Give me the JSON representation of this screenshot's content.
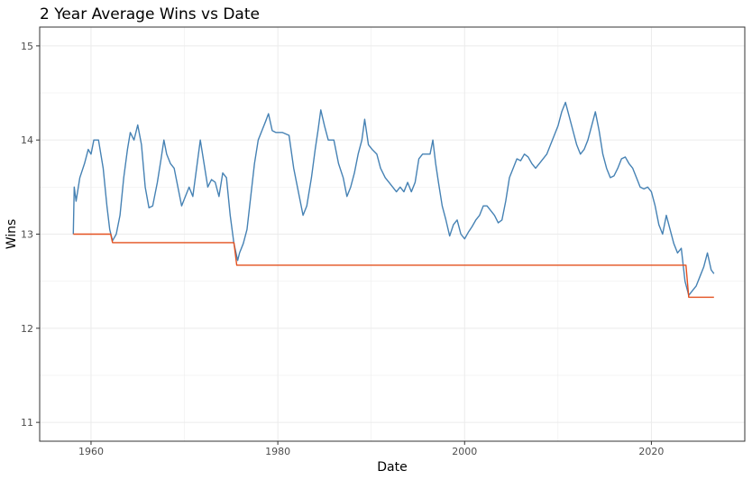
{
  "chart_data": {
    "type": "line",
    "title": "2 Year Average Wins vs Date",
    "xlabel": "Date",
    "ylabel": "Wins",
    "xlim": [
      1954.5,
      2030.0
    ],
    "ylim": [
      10.8,
      15.2
    ],
    "x_ticks": [
      1960,
      1980,
      2000,
      2020
    ],
    "x_tick_labels": [
      "1960",
      "1980",
      "2000",
      "2020"
    ],
    "y_ticks": [
      11,
      12,
      13,
      14,
      15
    ],
    "y_tick_labels": [
      "11",
      "12",
      "13",
      "14",
      "15"
    ],
    "grid": true,
    "legend": "none",
    "colors": {
      "average_wins": "#4682b4",
      "running_min": "#e3501f",
      "grid": "#ebebeb",
      "panel_border": "#333333"
    },
    "series": [
      {
        "key": "average_wins",
        "points": [
          [
            1958.1,
            13.0
          ],
          [
            1958.2,
            13.5
          ],
          [
            1958.4,
            13.35
          ],
          [
            1958.8,
            13.6
          ],
          [
            1959.3,
            13.75
          ],
          [
            1959.7,
            13.9
          ],
          [
            1960.0,
            13.85
          ],
          [
            1960.3,
            14.0
          ],
          [
            1960.8,
            14.0
          ],
          [
            1961.3,
            13.7
          ],
          [
            1961.7,
            13.3
          ],
          [
            1962.0,
            13.05
          ],
          [
            1962.3,
            12.93
          ],
          [
            1962.7,
            13.0
          ],
          [
            1963.1,
            13.2
          ],
          [
            1963.5,
            13.6
          ],
          [
            1963.9,
            13.9
          ],
          [
            1964.2,
            14.08
          ],
          [
            1964.6,
            14.0
          ],
          [
            1965.0,
            14.16
          ],
          [
            1965.4,
            13.95
          ],
          [
            1965.8,
            13.5
          ],
          [
            1966.2,
            13.28
          ],
          [
            1966.6,
            13.3
          ],
          [
            1967.1,
            13.55
          ],
          [
            1967.5,
            13.8
          ],
          [
            1967.8,
            14.0
          ],
          [
            1968.1,
            13.85
          ],
          [
            1968.5,
            13.75
          ],
          [
            1968.9,
            13.7
          ],
          [
            1969.3,
            13.5
          ],
          [
            1969.7,
            13.3
          ],
          [
            1970.1,
            13.4
          ],
          [
            1970.5,
            13.5
          ],
          [
            1970.9,
            13.4
          ],
          [
            1971.3,
            13.7
          ],
          [
            1971.7,
            14.0
          ],
          [
            1972.1,
            13.75
          ],
          [
            1972.5,
            13.5
          ],
          [
            1972.9,
            13.58
          ],
          [
            1973.3,
            13.55
          ],
          [
            1973.7,
            13.4
          ],
          [
            1974.1,
            13.65
          ],
          [
            1974.5,
            13.6
          ],
          [
            1974.9,
            13.2
          ],
          [
            1975.3,
            12.9
          ],
          [
            1975.7,
            12.72
          ],
          [
            1975.9,
            12.8
          ],
          [
            1976.3,
            12.9
          ],
          [
            1976.7,
            13.05
          ],
          [
            1977.1,
            13.4
          ],
          [
            1977.5,
            13.75
          ],
          [
            1977.9,
            14.0
          ],
          [
            1978.3,
            14.1
          ],
          [
            1978.7,
            14.2
          ],
          [
            1979.0,
            14.28
          ],
          [
            1979.4,
            14.1
          ],
          [
            1979.8,
            14.08
          ],
          [
            1980.5,
            14.08
          ],
          [
            1981.2,
            14.05
          ],
          [
            1981.7,
            13.7
          ],
          [
            1982.0,
            13.55
          ],
          [
            1982.4,
            13.35
          ],
          [
            1982.7,
            13.2
          ],
          [
            1983.1,
            13.3
          ],
          [
            1983.6,
            13.6
          ],
          [
            1984.0,
            13.9
          ],
          [
            1984.3,
            14.1
          ],
          [
            1984.6,
            14.32
          ],
          [
            1985.0,
            14.15
          ],
          [
            1985.4,
            14.0
          ],
          [
            1986.0,
            14.0
          ],
          [
            1986.5,
            13.75
          ],
          [
            1987.0,
            13.6
          ],
          [
            1987.4,
            13.4
          ],
          [
            1987.8,
            13.5
          ],
          [
            1988.2,
            13.65
          ],
          [
            1988.6,
            13.85
          ],
          [
            1989.0,
            14.0
          ],
          [
            1989.3,
            14.22
          ],
          [
            1989.7,
            13.95
          ],
          [
            1990.1,
            13.9
          ],
          [
            1990.6,
            13.85
          ],
          [
            1991.0,
            13.7
          ],
          [
            1991.5,
            13.6
          ],
          [
            1991.9,
            13.55
          ],
          [
            1992.3,
            13.5
          ],
          [
            1992.7,
            13.45
          ],
          [
            1993.1,
            13.5
          ],
          [
            1993.5,
            13.45
          ],
          [
            1993.9,
            13.55
          ],
          [
            1994.3,
            13.45
          ],
          [
            1994.7,
            13.55
          ],
          [
            1995.1,
            13.8
          ],
          [
            1995.5,
            13.85
          ],
          [
            1995.9,
            13.85
          ],
          [
            1996.3,
            13.85
          ],
          [
            1996.6,
            14.0
          ],
          [
            1996.9,
            13.75
          ],
          [
            1997.2,
            13.55
          ],
          [
            1997.6,
            13.3
          ],
          [
            1998.0,
            13.15
          ],
          [
            1998.4,
            12.98
          ],
          [
            1998.8,
            13.1
          ],
          [
            1999.2,
            13.15
          ],
          [
            1999.6,
            13.0
          ],
          [
            2000.0,
            12.95
          ],
          [
            2000.4,
            13.02
          ],
          [
            2000.8,
            13.08
          ],
          [
            2001.2,
            13.15
          ],
          [
            2001.6,
            13.2
          ],
          [
            2002.0,
            13.3
          ],
          [
            2002.4,
            13.3
          ],
          [
            2002.8,
            13.25
          ],
          [
            2003.2,
            13.2
          ],
          [
            2003.6,
            13.12
          ],
          [
            2004.0,
            13.15
          ],
          [
            2004.4,
            13.35
          ],
          [
            2004.8,
            13.6
          ],
          [
            2005.2,
            13.7
          ],
          [
            2005.6,
            13.8
          ],
          [
            2006.0,
            13.78
          ],
          [
            2006.4,
            13.85
          ],
          [
            2006.8,
            13.82
          ],
          [
            2007.2,
            13.75
          ],
          [
            2007.6,
            13.7
          ],
          [
            2008.0,
            13.75
          ],
          [
            2008.4,
            13.8
          ],
          [
            2008.8,
            13.85
          ],
          [
            2009.2,
            13.95
          ],
          [
            2009.6,
            14.05
          ],
          [
            2010.0,
            14.15
          ],
          [
            2010.4,
            14.3
          ],
          [
            2010.8,
            14.4
          ],
          [
            2011.2,
            14.25
          ],
          [
            2011.6,
            14.1
          ],
          [
            2012.0,
            13.95
          ],
          [
            2012.4,
            13.85
          ],
          [
            2012.8,
            13.9
          ],
          [
            2013.2,
            14.0
          ],
          [
            2013.6,
            14.15
          ],
          [
            2014.0,
            14.3
          ],
          [
            2014.4,
            14.1
          ],
          [
            2014.8,
            13.85
          ],
          [
            2015.2,
            13.7
          ],
          [
            2015.6,
            13.6
          ],
          [
            2016.0,
            13.62
          ],
          [
            2016.4,
            13.7
          ],
          [
            2016.8,
            13.8
          ],
          [
            2017.2,
            13.82
          ],
          [
            2017.6,
            13.75
          ],
          [
            2018.0,
            13.7
          ],
          [
            2018.4,
            13.6
          ],
          [
            2018.8,
            13.5
          ],
          [
            2019.2,
            13.48
          ],
          [
            2019.6,
            13.5
          ],
          [
            2020.0,
            13.45
          ],
          [
            2020.4,
            13.3
          ],
          [
            2020.8,
            13.1
          ],
          [
            2021.2,
            13.0
          ],
          [
            2021.6,
            13.2
          ],
          [
            2022.0,
            13.05
          ],
          [
            2022.4,
            12.9
          ],
          [
            2022.8,
            12.8
          ],
          [
            2023.2,
            12.85
          ],
          [
            2023.6,
            12.5
          ],
          [
            2024.0,
            12.35
          ],
          [
            2024.4,
            12.4
          ],
          [
            2024.8,
            12.45
          ],
          [
            2025.2,
            12.55
          ],
          [
            2025.6,
            12.65
          ],
          [
            2026.0,
            12.8
          ],
          [
            2026.4,
            12.62
          ],
          [
            2026.7,
            12.58
          ]
        ]
      },
      {
        "key": "running_min",
        "points": [
          [
            1958.1,
            13.0
          ],
          [
            1962.1,
            13.0
          ],
          [
            1962.3,
            12.91
          ],
          [
            1975.3,
            12.91
          ],
          [
            1975.6,
            12.67
          ],
          [
            2023.7,
            12.67
          ],
          [
            2024.0,
            12.33
          ],
          [
            2026.7,
            12.33
          ]
        ]
      }
    ]
  }
}
